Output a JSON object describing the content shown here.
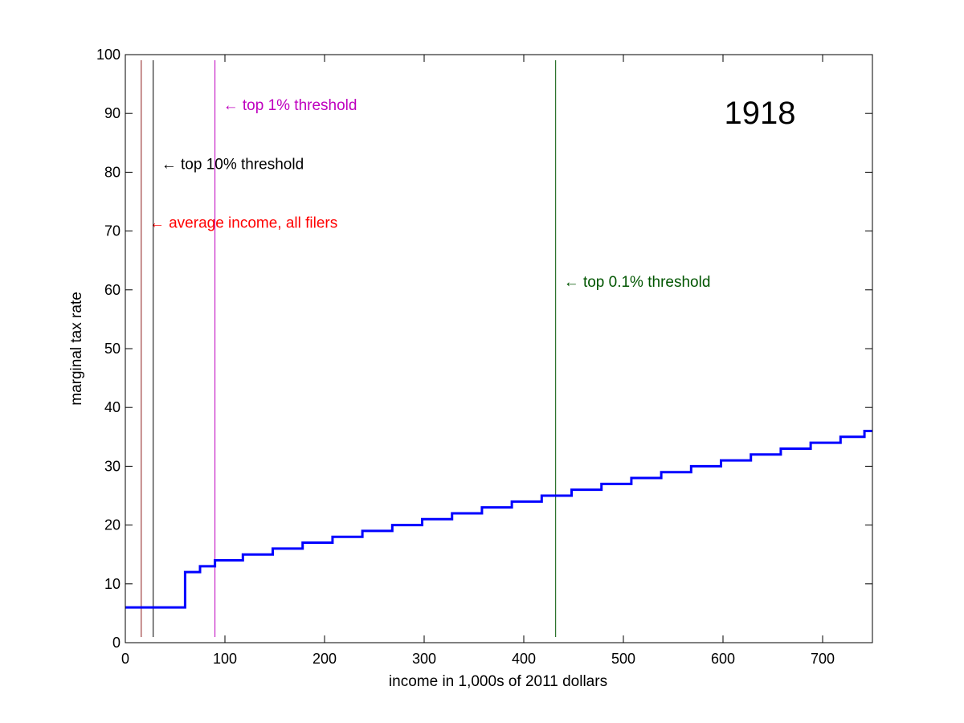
{
  "chart_data": {
    "type": "line",
    "title": "",
    "year_label": "1918",
    "xlabel": "income in 1,000s of 2011 dollars",
    "ylabel": "marginal tax rate",
    "xlim": [
      0,
      750
    ],
    "ylim": [
      0,
      100
    ],
    "xticks": [
      0,
      100,
      200,
      300,
      400,
      500,
      600,
      700
    ],
    "yticks": [
      0,
      10,
      20,
      30,
      40,
      50,
      60,
      70,
      80,
      90,
      100
    ],
    "grid": false,
    "series": [
      {
        "color": "#0000ff",
        "step": true,
        "x": [
          0,
          60,
          75,
          90,
          118,
          148,
          178,
          208,
          238,
          268,
          298,
          328,
          358,
          388,
          418,
          448,
          478,
          508,
          538,
          568,
          598,
          628,
          658,
          688,
          718,
          742,
          750
        ],
        "y": [
          6,
          12,
          13,
          14,
          15,
          16,
          17,
          18,
          19,
          20,
          21,
          22,
          23,
          24,
          25,
          26,
          27,
          28,
          29,
          30,
          31,
          32,
          33,
          34,
          35,
          36,
          36
        ]
      }
    ],
    "threshold_lines": [
      {
        "x": 16,
        "label": "← average income, all filers",
        "color": "#ff0000",
        "line_color": "#8b1a1a",
        "label_y": 71.5
      },
      {
        "x": 28,
        "label": "← top 10% threshold",
        "color": "#000000",
        "line_color": "#000000",
        "label_y": 81.5
      },
      {
        "x": 90,
        "label": "← top 1% threshold",
        "color": "#bf00bf",
        "line_color": "#bf00bf",
        "label_y": 91.5
      },
      {
        "x": 432,
        "label": "← top 0.1% threshold",
        "color": "#005500",
        "line_color": "#005500",
        "label_y": 61.5
      }
    ]
  }
}
